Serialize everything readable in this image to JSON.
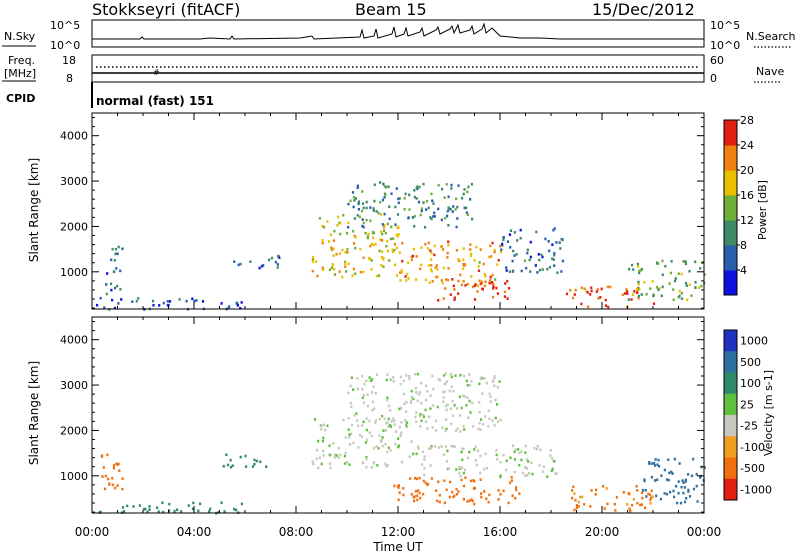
{
  "header": {
    "station": "Stokkseyri (fitACF)",
    "beam": "Beam 15",
    "date": "15/Dec/2012"
  },
  "sky_panel": {
    "left_label": "N.Sky",
    "left_ticks": [
      "10^5",
      "10^0"
    ],
    "right_ticks": [
      "10^5",
      "10^0"
    ],
    "right_label": "N.Search"
  },
  "freq_panel": {
    "left_label_line1": "Freq.",
    "left_label_line2": "[MHz]",
    "left_ticks": [
      "18",
      "8"
    ],
    "right_ticks": [
      "60",
      "0"
    ],
    "right_label": "Nave"
  },
  "cpid": {
    "label": "CPID",
    "value": "normal (fast) 151"
  },
  "chart_data": [
    {
      "type": "heatmap",
      "title": "",
      "xlabel": "Time UT",
      "ylabel": "Slant Range [km]",
      "x_ticks": [
        "00:00",
        "04:00",
        "08:00",
        "12:00",
        "16:00",
        "20:00",
        "00:00"
      ],
      "x_range_hours": [
        0,
        24
      ],
      "y_ticks": [
        "1000",
        "2000",
        "3000",
        "4000"
      ],
      "ylim": [
        180,
        4500
      ],
      "colorbar": {
        "label": "Power [dB]",
        "ticks": [
          "4",
          "8",
          "12",
          "16",
          "20",
          "24",
          "28"
        ],
        "range": [
          0,
          30
        ],
        "colors": [
          "#1010e0",
          "#2a5fb0",
          "#3f8a66",
          "#6fae3a",
          "#e8c000",
          "#f08010",
          "#e02010"
        ]
      },
      "regions": [
        {
          "t0": 8.6,
          "t1": 12.0,
          "r0": 900,
          "r1": 2300,
          "value": 18
        },
        {
          "t0": 12.0,
          "t1": 16.0,
          "r0": 700,
          "r1": 1700,
          "value": 22
        },
        {
          "t0": 13.5,
          "t1": 16.5,
          "r0": 400,
          "r1": 900,
          "value": 28
        },
        {
          "t0": 10.0,
          "t1": 15.0,
          "r0": 2000,
          "r1": 3000,
          "value": 10
        },
        {
          "t0": 16.0,
          "t1": 18.5,
          "r0": 1000,
          "r1": 2000,
          "value": 8
        },
        {
          "t0": 18.5,
          "t1": 22.0,
          "r0": 250,
          "r1": 700,
          "value": 26
        },
        {
          "t0": 21.0,
          "t1": 24.0,
          "r0": 400,
          "r1": 1300,
          "value": 14
        },
        {
          "t0": 0.0,
          "t1": 6.0,
          "r0": 200,
          "r1": 450,
          "value": 6
        },
        {
          "t0": 0.5,
          "t1": 1.2,
          "r0": 400,
          "r1": 1600,
          "value": 8
        },
        {
          "t0": 5.5,
          "t1": 7.5,
          "r0": 1100,
          "r1": 1400,
          "value": 6
        }
      ]
    },
    {
      "type": "heatmap",
      "title": "",
      "xlabel": "Time UT",
      "ylabel": "Slant Range [km]",
      "x_ticks": [
        "00:00",
        "04:00",
        "08:00",
        "12:00",
        "16:00",
        "20:00",
        "00:00"
      ],
      "x_range_hours": [
        0,
        24
      ],
      "y_ticks": [
        "1000",
        "2000",
        "3000",
        "4000"
      ],
      "ylim": [
        180,
        4500
      ],
      "colorbar": {
        "label": "Velocity [m s-1]",
        "ticks": [
          "1000",
          "500",
          "100",
          "25",
          "-25",
          "-100",
          "-500",
          "-1000"
        ],
        "colors": [
          "#2030c0",
          "#3070a0",
          "#2f8a6a",
          "#60c040",
          "#c8c8c0",
          "#f0a020",
          "#f07010",
          "#e02010"
        ]
      },
      "regions": [
        {
          "t0": 8.6,
          "t1": 12.5,
          "r0": 1200,
          "r1": 2300,
          "value": 0
        },
        {
          "t0": 12.5,
          "t1": 18.2,
          "r0": 1000,
          "r1": 1700,
          "value": 0
        },
        {
          "t0": 10.0,
          "t1": 16.0,
          "r0": 2000,
          "r1": 3300,
          "value": 0
        },
        {
          "t0": 11.8,
          "t1": 17.0,
          "r0": 400,
          "r1": 1000,
          "value": -300
        },
        {
          "t0": 18.5,
          "t1": 22.0,
          "r0": 250,
          "r1": 800,
          "value": -150
        },
        {
          "t0": 21.5,
          "t1": 24.0,
          "r0": 400,
          "r1": 1400,
          "value": 300
        },
        {
          "t0": 0.0,
          "t1": 6.0,
          "r0": 200,
          "r1": 450,
          "value": 60
        },
        {
          "t0": 0.3,
          "t1": 1.2,
          "r0": 600,
          "r1": 1600,
          "value": -200
        },
        {
          "t0": 5.0,
          "t1": 7.0,
          "r0": 1200,
          "r1": 1500,
          "value": 60
        }
      ]
    }
  ]
}
